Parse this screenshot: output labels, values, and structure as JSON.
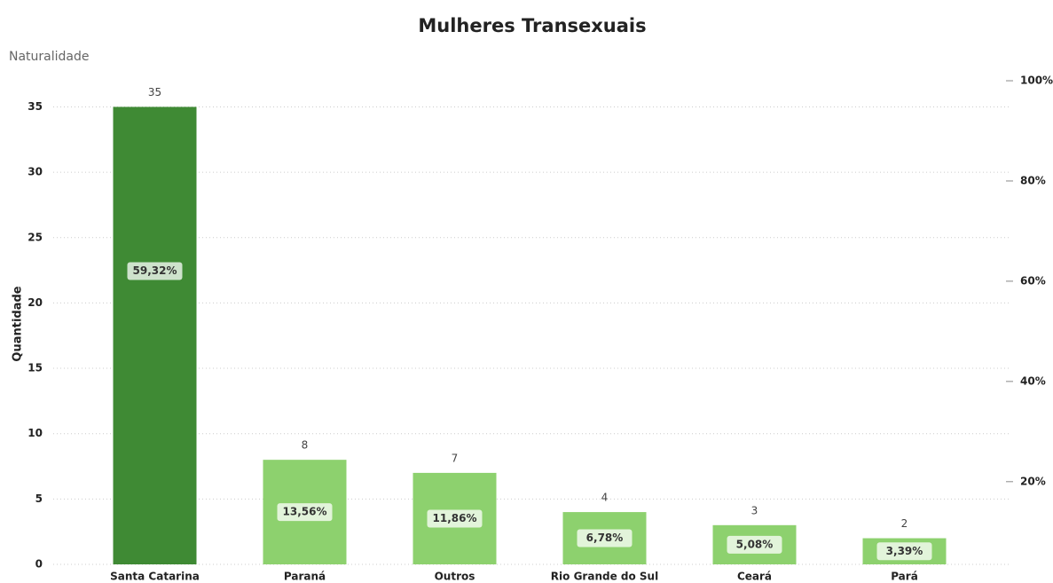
{
  "chart_data": {
    "type": "bar",
    "title": "Mulheres Transexuais",
    "subtitle": "Naturalidade",
    "y_label": "Quantidade",
    "categories": [
      "Santa Catarina",
      "Paraná",
      "Outros",
      "Rio Grande do Sul",
      "Ceará",
      "Pará"
    ],
    "values": [
      35,
      8,
      7,
      4,
      3,
      2
    ],
    "colors": [
      "#3f8a34",
      "#8dd16e",
      "#8dd16e",
      "#8dd16e",
      "#8dd16e",
      "#8dd16e"
    ],
    "percentages": [
      59.32,
      13.56,
      11.86,
      6.78,
      5.08,
      3.39
    ],
    "percentage_labels": [
      "59,32%",
      "13,56%",
      "11,86%",
      "6,78%",
      "5,08%",
      "3,39%"
    ],
    "ylim": [
      0,
      37
    ],
    "yticks": [
      0,
      5,
      10,
      15,
      20,
      25,
      30,
      35
    ],
    "y2lim": [
      3.5,
      100
    ],
    "y2ticks": [
      {
        "value": 20,
        "label": "20%"
      },
      {
        "value": 40,
        "label": "40%"
      },
      {
        "value": 60,
        "label": "60%"
      },
      {
        "value": 80,
        "label": "80%"
      },
      {
        "value": 100,
        "label": "100%"
      }
    ],
    "grid": true
  }
}
